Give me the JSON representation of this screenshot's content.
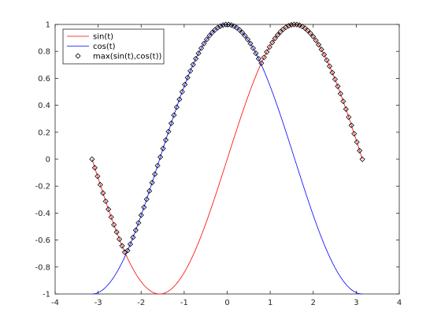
{
  "chart_data": {
    "type": "line",
    "title": "",
    "xlabel": "",
    "ylabel": "",
    "xlim": [
      -4,
      4
    ],
    "ylim": [
      -1,
      1
    ],
    "xticks": [
      -4,
      -3,
      -2,
      -1,
      0,
      1,
      2,
      3,
      4
    ],
    "yticks": [
      -1,
      -0.8,
      -0.6,
      -0.4,
      -0.2,
      0,
      0.2,
      0.4,
      0.6,
      0.8,
      1
    ],
    "grid": false,
    "legend_position": "top-left",
    "t_range": [
      -3.1416,
      3.1416
    ],
    "series": [
      {
        "name": "sin(t)",
        "function": "sin",
        "color": "#ff0000",
        "style": "line"
      },
      {
        "name": "cos(t)",
        "function": "cos",
        "color": "#0000ff",
        "style": "line"
      },
      {
        "name": "max(sin(t),cos(t))",
        "function": "max",
        "color": "#000000",
        "style": "marker",
        "marker": "diamond",
        "marker_count": 100
      }
    ]
  }
}
